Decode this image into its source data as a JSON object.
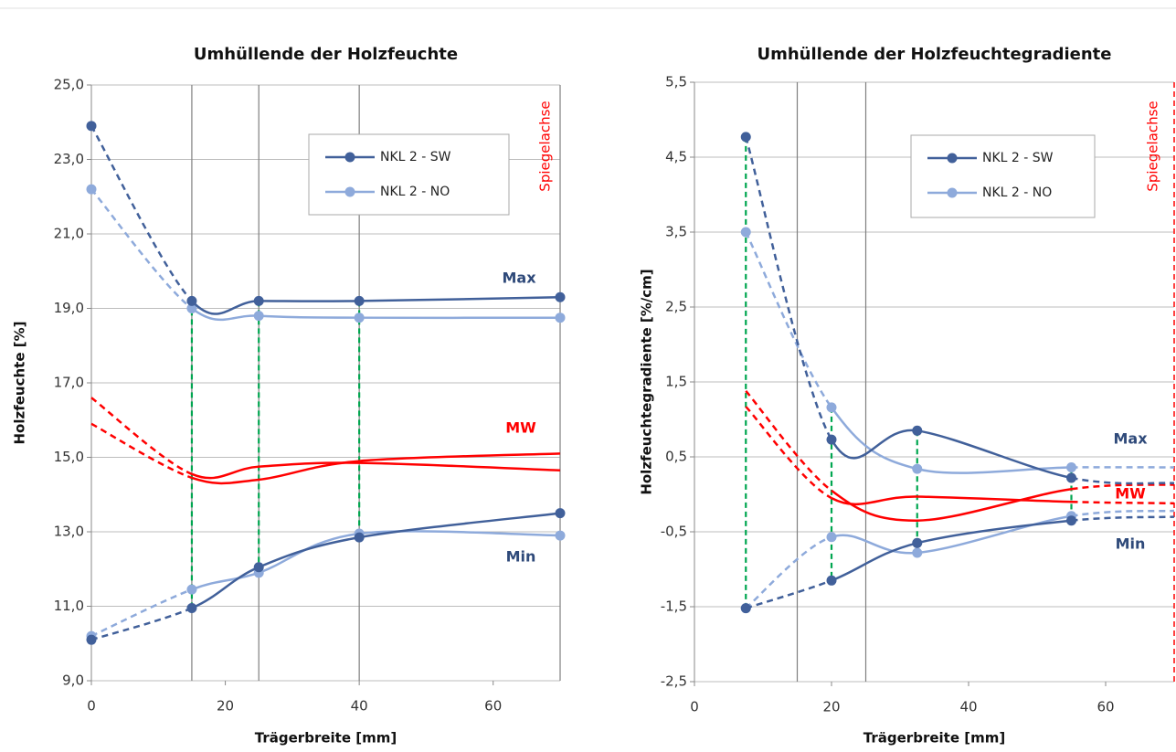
{
  "chart_data": [
    {
      "type": "line",
      "title": "Umhüllende der Holzfeuchte",
      "x_label": "Trägerbreite [mm]",
      "y_label": "Holzfeuchte [%]",
      "x": [
        0,
        15,
        25,
        40,
        70
      ],
      "xlim": [
        0,
        70
      ],
      "xticks": [
        0,
        20,
        40,
        60
      ],
      "xgrid": [
        15,
        25,
        40,
        70
      ],
      "ylim": [
        9,
        25
      ],
      "yticks": [
        {
          "value": 9,
          "label": "9,0"
        },
        {
          "value": 11,
          "label": "11,0"
        },
        {
          "value": 13,
          "label": "13,0"
        },
        {
          "value": 15,
          "label": "15,0"
        },
        {
          "value": 17,
          "label": "17,0"
        },
        {
          "value": 19,
          "label": "19,0"
        },
        {
          "value": 21,
          "label": "21,0"
        },
        {
          "value": 23,
          "label": "23,0"
        },
        {
          "value": 25,
          "label": "25,0"
        }
      ],
      "grid": true,
      "legend": "upper right",
      "dashed_segments": [
        0
      ],
      "range_points": [
        1,
        2,
        3
      ],
      "range_color": "#00a650",
      "mirror_label": "Spiegelachse",
      "mirror_color": "#ff0000",
      "mirror_line": false,
      "annotations": [
        {
          "text": "Max",
          "color": "#2f4a7a"
        },
        {
          "text": "MW",
          "color": "#ff0000"
        },
        {
          "text": "Min",
          "color": "#2f4a7a"
        }
      ],
      "series": [
        {
          "name": "NKL 2 - SW",
          "color": "#41609a",
          "values": [
            23.9,
            19.2,
            19.2,
            19.2,
            19.3
          ]
        },
        {
          "name": "NKL 2 - NO",
          "color": "#8eaadb",
          "values": [
            22.2,
            19.0,
            18.8,
            18.75,
            18.75
          ]
        },
        {
          "color": "#41609a",
          "values": [
            10.1,
            10.95,
            12.05,
            12.85,
            13.5
          ]
        },
        {
          "color": "#8eaadb",
          "values": [
            10.2,
            11.45,
            11.9,
            12.95,
            12.9
          ]
        },
        {
          "color": "#ff0000",
          "markers": false,
          "values": [
            16.6,
            14.55,
            14.75,
            14.85,
            14.65
          ]
        },
        {
          "color": "#ff0000",
          "markers": false,
          "values": [
            15.9,
            14.45,
            14.4,
            14.9,
            15.1
          ]
        }
      ]
    },
    {
      "type": "line",
      "title": "Umhüllende der Holzfeuchtegradiente",
      "x_label": "Trägerbreite [mm]",
      "y_label": "Holzfeuchtegradiente [%/cm]",
      "x": [
        7.5,
        20,
        32.5,
        55,
        70
      ],
      "xlim": [
        0,
        70
      ],
      "xticks": [
        0,
        20,
        40,
        60
      ],
      "xgrid": [
        15,
        25
      ],
      "ylim": [
        -2.5,
        5.5
      ],
      "yticks": [
        {
          "value": -2.5,
          "label": "-2,5"
        },
        {
          "value": -1.5,
          "label": "-1,5"
        },
        {
          "value": -0.5,
          "label": "-0,5"
        },
        {
          "value": 0.5,
          "label": "0,5"
        },
        {
          "value": 1.5,
          "label": "1,5"
        },
        {
          "value": 2.5,
          "label": "2,5"
        },
        {
          "value": 3.5,
          "label": "3,5"
        },
        {
          "value": 4.5,
          "label": "4,5"
        },
        {
          "value": 5.5,
          "label": "5,5"
        }
      ],
      "grid": true,
      "legend": "upper right",
      "dashed_segments": [
        0,
        3
      ],
      "unmarked_last": true,
      "range_points": [
        0,
        1,
        2,
        3
      ],
      "range_color": "#00a650",
      "mirror_label": "Spiegelachse",
      "mirror_color": "#ff0000",
      "mirror_line": true,
      "annotations": [
        {
          "text": "Max",
          "color": "#2f4a7a"
        },
        {
          "text": "MW",
          "color": "#ff0000"
        },
        {
          "text": "Min",
          "color": "#2f4a7a"
        }
      ],
      "series": [
        {
          "name": "NKL 2 - SW",
          "color": "#41609a",
          "values": [
            4.77,
            0.73,
            0.85,
            0.22,
            0.15
          ]
        },
        {
          "name": "NKL 2 - NO",
          "color": "#8eaadb",
          "values": [
            3.5,
            1.16,
            0.34,
            0.36,
            0.36
          ]
        },
        {
          "color": "#41609a",
          "values": [
            -1.52,
            -1.15,
            -0.65,
            -0.35,
            -0.3
          ]
        },
        {
          "color": "#8eaadb",
          "values": [
            -1.52,
            -0.57,
            -0.78,
            -0.29,
            -0.22
          ]
        },
        {
          "color": "#ff0000",
          "markers": false,
          "values": [
            1.38,
            0.05,
            -0.35,
            0.07,
            0.13
          ]
        },
        {
          "color": "#ff0000",
          "markers": false,
          "values": [
            1.17,
            -0.05,
            -0.03,
            -0.1,
            -0.12
          ]
        }
      ]
    }
  ]
}
